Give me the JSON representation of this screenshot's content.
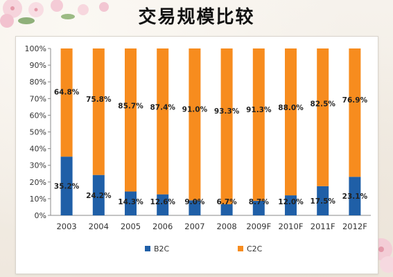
{
  "title": "交易规模比较",
  "colors": {
    "b2c": "#1f5fa7",
    "c2c": "#f78c1e",
    "axis": "#888888",
    "label": "#333333"
  },
  "chart_data": {
    "type": "bar",
    "stacked": true,
    "percent": true,
    "categories": [
      "2003",
      "2004",
      "2005",
      "2006",
      "2007",
      "2008",
      "2009F",
      "2010F",
      "2011F",
      "2012F"
    ],
    "series": [
      {
        "name": "B2C",
        "values": [
          35.2,
          24.2,
          14.3,
          12.6,
          9.0,
          6.7,
          8.7,
          12.0,
          17.5,
          23.1
        ],
        "labels": [
          "35.2%",
          "24.2%",
          "14.3%",
          "12.6%",
          "9.0%",
          "6.7%",
          "8.7%",
          "12.0%",
          "17.5%",
          "23.1%"
        ]
      },
      {
        "name": "C2C",
        "values": [
          64.8,
          75.8,
          85.7,
          87.4,
          91.0,
          93.3,
          91.3,
          88.0,
          82.5,
          76.9
        ],
        "labels": [
          "64.8%",
          "75.8%",
          "85.7%",
          "87.4%",
          "91.0%",
          "93.3%",
          "91.3%",
          "88.0%",
          "82.5%",
          "76.9%"
        ]
      }
    ],
    "ylim": [
      0,
      100
    ],
    "yticks": [
      "0%",
      "10%",
      "20%",
      "30%",
      "40%",
      "50%",
      "60%",
      "70%",
      "80%",
      "90%",
      "100%"
    ],
    "legend": "bottom",
    "grid": false
  }
}
